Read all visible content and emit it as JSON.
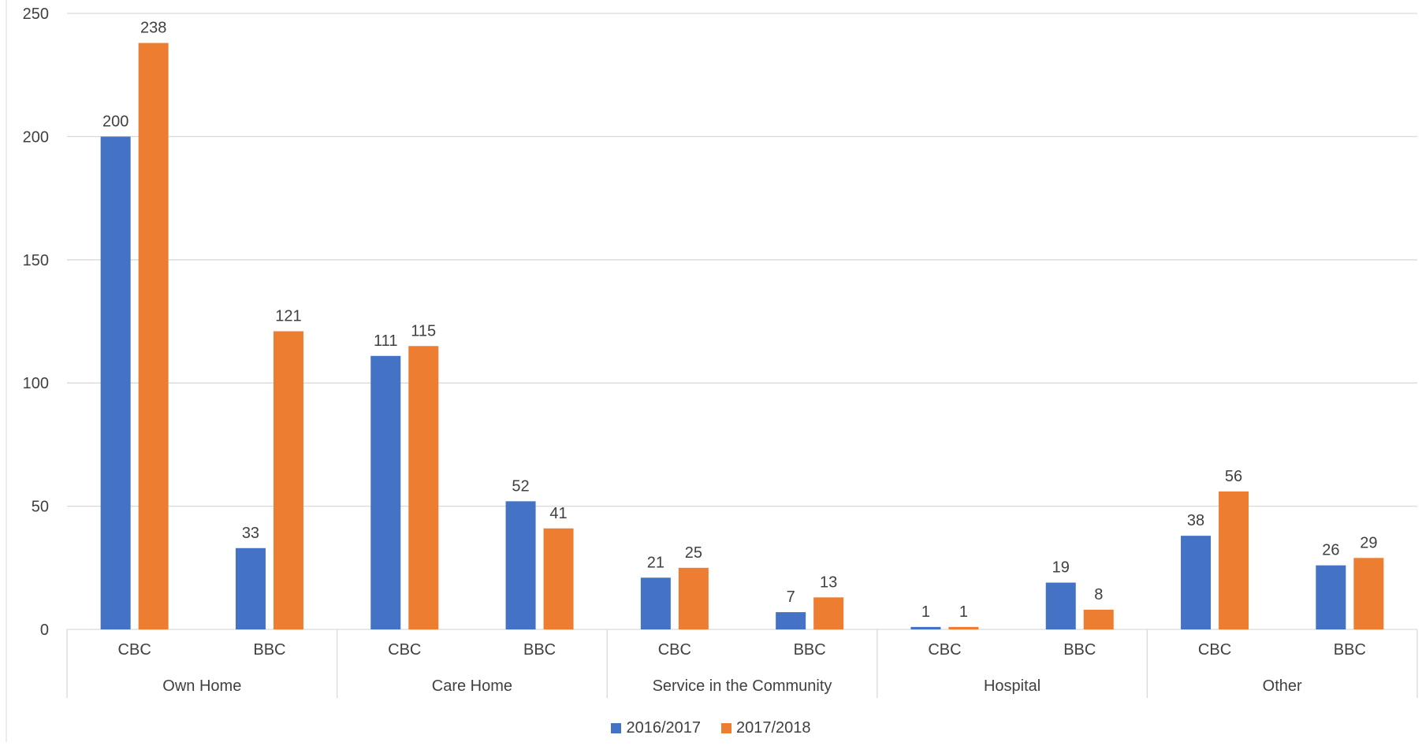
{
  "chart_data": {
    "type": "bar",
    "ylim": [
      0,
      250
    ],
    "yticks": [
      0,
      50,
      100,
      150,
      200,
      250
    ],
    "grid": true,
    "legend_position": "bottom",
    "groups": [
      {
        "label": "Own Home",
        "categories": [
          "CBC",
          "BBC"
        ]
      },
      {
        "label": "Care Home",
        "categories": [
          "CBC",
          "BBC"
        ]
      },
      {
        "label": "Service in the Community",
        "categories": [
          "CBC",
          "BBC"
        ]
      },
      {
        "label": "Hospital",
        "categories": [
          "CBC",
          "BBC"
        ]
      },
      {
        "label": "Other",
        "categories": [
          "CBC",
          "BBC"
        ]
      }
    ],
    "categories": [
      "Own Home CBC",
      "Own Home BBC",
      "Care Home CBC",
      "Care Home BBC",
      "Service in the Community CBC",
      "Service in the Community BBC",
      "Hospital CBC",
      "Hospital BBC",
      "Other CBC",
      "Other BBC"
    ],
    "series": [
      {
        "name": "2016/2017",
        "color": "#4472C4",
        "values": [
          200,
          33,
          111,
          52,
          21,
          7,
          1,
          19,
          38,
          26
        ]
      },
      {
        "name": "2017/2018",
        "color": "#ED7D31",
        "values": [
          238,
          121,
          115,
          41,
          25,
          13,
          1,
          8,
          56,
          29
        ]
      }
    ]
  }
}
